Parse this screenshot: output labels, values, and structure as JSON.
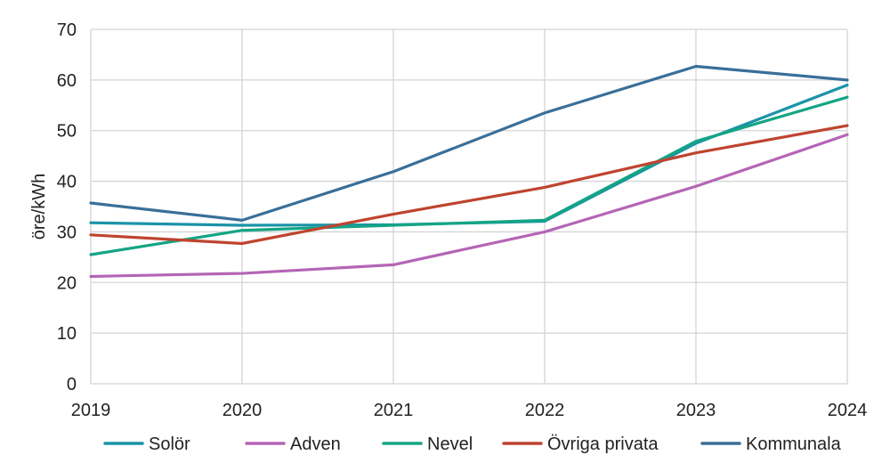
{
  "chart_data": {
    "type": "line",
    "ylabel": "öre/kWh",
    "xlabel": "",
    "x": [
      "2019",
      "2020",
      "2021",
      "2022",
      "2023",
      "2024"
    ],
    "ylim": [
      0,
      70
    ],
    "yticks": [
      0,
      10,
      20,
      30,
      40,
      50,
      60,
      70
    ],
    "grid": "vertical and horizontal",
    "legend": "bottom",
    "series": [
      {
        "name": "Solör",
        "color": "#1b93a8",
        "values": [
          31.8,
          31.3,
          31.4,
          32.1,
          47.5,
          59.0
        ]
      },
      {
        "name": "Adven",
        "color": "#b565b5",
        "values": [
          21.2,
          21.8,
          23.5,
          30.0,
          39.0,
          49.2
        ]
      },
      {
        "name": "Nevel",
        "color": "#14a584",
        "values": [
          25.5,
          30.3,
          31.3,
          32.3,
          47.9,
          56.6
        ]
      },
      {
        "name": "Övriga privata",
        "color": "#bf4430",
        "values": [
          29.4,
          27.7,
          33.5,
          38.8,
          45.6,
          51.0
        ]
      },
      {
        "name": "Kommunala",
        "color": "#3a6f98",
        "values": [
          35.7,
          32.3,
          41.9,
          53.5,
          62.7,
          60.0
        ]
      }
    ]
  }
}
